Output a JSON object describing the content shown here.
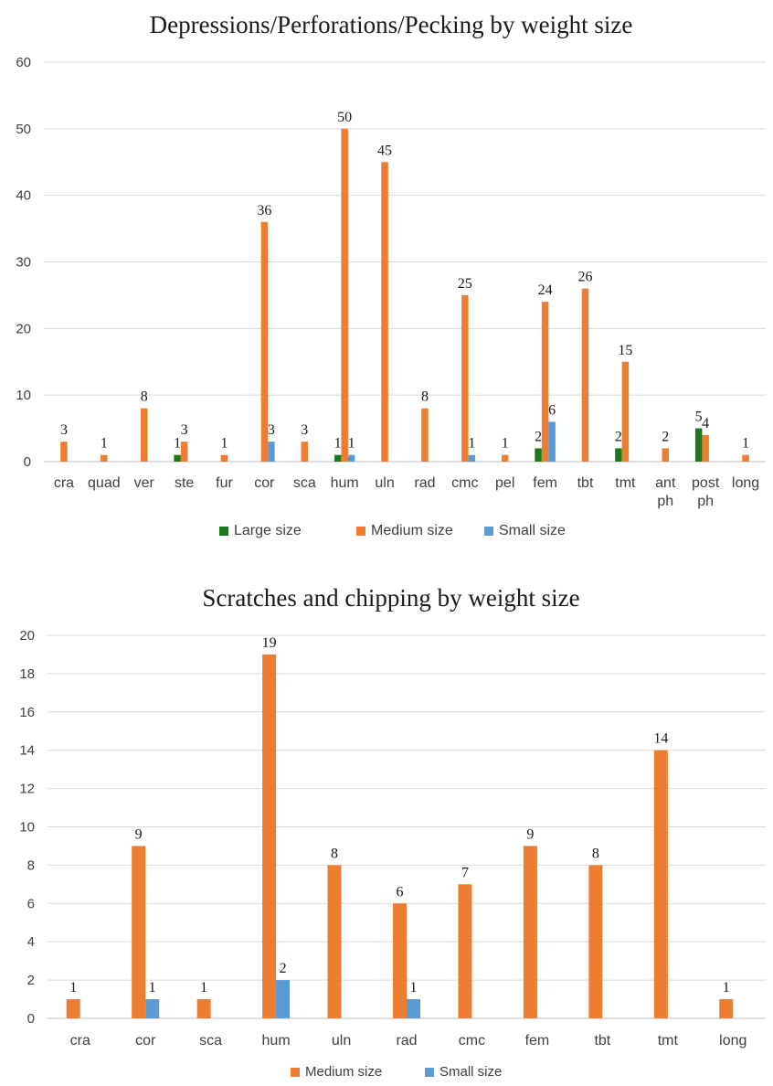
{
  "chart_data": [
    {
      "type": "bar",
      "title": "Depressions/Perforations/Pecking by weight size",
      "categories": [
        "cra",
        "quad",
        "ver",
        "ste",
        "fur",
        "cor",
        "sca",
        "hum",
        "uln",
        "rad",
        "cmc",
        "pel",
        "fem",
        "tbt",
        "tmt",
        "ant ph",
        "post ph",
        "long"
      ],
      "series": [
        {
          "name": "Large size",
          "color": "#1a7a1a",
          "values": [
            null,
            null,
            null,
            1,
            null,
            null,
            null,
            1,
            null,
            null,
            null,
            null,
            2,
            null,
            2,
            null,
            5,
            null
          ]
        },
        {
          "name": "Medium size",
          "color": "#ed7d31",
          "values": [
            3,
            1,
            8,
            3,
            1,
            36,
            3,
            50,
            45,
            8,
            25,
            1,
            24,
            26,
            15,
            2,
            4,
            1
          ]
        },
        {
          "name": "Small size",
          "color": "#5b9bd5",
          "values": [
            null,
            null,
            null,
            null,
            null,
            3,
            null,
            1,
            null,
            null,
            1,
            null,
            6,
            null,
            null,
            null,
            null,
            null
          ]
        }
      ],
      "ylim": [
        0,
        60
      ],
      "yticks": [
        0,
        10,
        20,
        30,
        40,
        50,
        60
      ],
      "grid": true,
      "legend": "bottom"
    },
    {
      "type": "bar",
      "title": "Scratches and chipping by weight size",
      "categories": [
        "cra",
        "cor",
        "sca",
        "hum",
        "uln",
        "rad",
        "cmc",
        "fem",
        "tbt",
        "tmt",
        "long"
      ],
      "series": [
        {
          "name": "Medium size",
          "color": "#ed7d31",
          "values": [
            1,
            9,
            1,
            19,
            8,
            6,
            7,
            9,
            8,
            14,
            1
          ]
        },
        {
          "name": "Small size",
          "color": "#5b9bd5",
          "values": [
            null,
            1,
            null,
            2,
            null,
            1,
            null,
            null,
            null,
            null,
            null
          ]
        }
      ],
      "ylim": [
        0,
        20
      ],
      "yticks": [
        0,
        2,
        4,
        6,
        8,
        10,
        12,
        14,
        16,
        18,
        20
      ],
      "grid": true,
      "legend": "bottom"
    }
  ]
}
